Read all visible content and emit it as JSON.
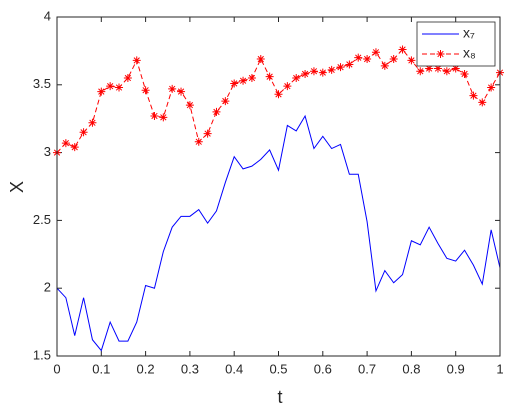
{
  "chart_data": {
    "type": "line",
    "xlabel": "t",
    "ylabel": "X",
    "x": [
      0,
      0.02,
      0.04,
      0.06,
      0.08,
      0.1,
      0.12,
      0.14,
      0.16,
      0.18,
      0.2,
      0.22,
      0.24,
      0.26,
      0.28,
      0.3,
      0.32,
      0.34,
      0.36,
      0.38,
      0.4,
      0.42,
      0.44,
      0.46,
      0.48,
      0.5,
      0.52,
      0.54,
      0.56,
      0.58,
      0.6,
      0.62,
      0.64,
      0.66,
      0.68,
      0.7,
      0.72,
      0.74,
      0.76,
      0.78,
      0.8,
      0.82,
      0.84,
      0.86,
      0.88,
      0.9,
      0.92,
      0.94,
      0.96,
      0.98,
      1
    ],
    "series": [
      {
        "name": "x₇",
        "color": "#0000ff",
        "style": "solid",
        "marker": "none",
        "values": [
          2.0,
          1.93,
          1.65,
          1.93,
          1.62,
          1.54,
          1.75,
          1.61,
          1.61,
          1.75,
          2.02,
          2.0,
          2.27,
          2.45,
          2.53,
          2.53,
          2.58,
          2.48,
          2.57,
          2.78,
          2.97,
          2.88,
          2.9,
          2.95,
          3.02,
          2.87,
          3.2,
          3.16,
          3.27,
          3.03,
          3.12,
          3.03,
          3.06,
          2.84,
          2.84,
          2.49,
          1.98,
          2.13,
          2.04,
          2.1,
          2.35,
          2.32,
          2.45,
          2.33,
          2.22,
          2.2,
          2.28,
          2.17,
          2.03,
          2.43,
          2.15
        ]
      },
      {
        "name": "x₈",
        "color": "#ff0000",
        "style": "dashed",
        "marker": "asterisk",
        "values": [
          3.0,
          3.07,
          3.04,
          3.15,
          3.22,
          3.45,
          3.49,
          3.48,
          3.55,
          3.68,
          3.46,
          3.27,
          3.26,
          3.47,
          3.45,
          3.35,
          3.08,
          3.14,
          3.3,
          3.38,
          3.51,
          3.53,
          3.55,
          3.69,
          3.56,
          3.43,
          3.49,
          3.55,
          3.58,
          3.6,
          3.59,
          3.61,
          3.63,
          3.65,
          3.7,
          3.69,
          3.74,
          3.64,
          3.69,
          3.76,
          3.68,
          3.6,
          3.62,
          3.62,
          3.6,
          3.62,
          3.58,
          3.42,
          3.37,
          3.48,
          3.59
        ]
      }
    ],
    "xlim": [
      0,
      1
    ],
    "ylim": [
      1.5,
      4
    ],
    "xticks": [
      0,
      0.1,
      0.2,
      0.3,
      0.4,
      0.5,
      0.6,
      0.7,
      0.8,
      0.9,
      1
    ],
    "yticks": [
      1.5,
      2,
      2.5,
      3,
      3.5,
      4
    ],
    "grid": false,
    "legend": "northeast"
  }
}
